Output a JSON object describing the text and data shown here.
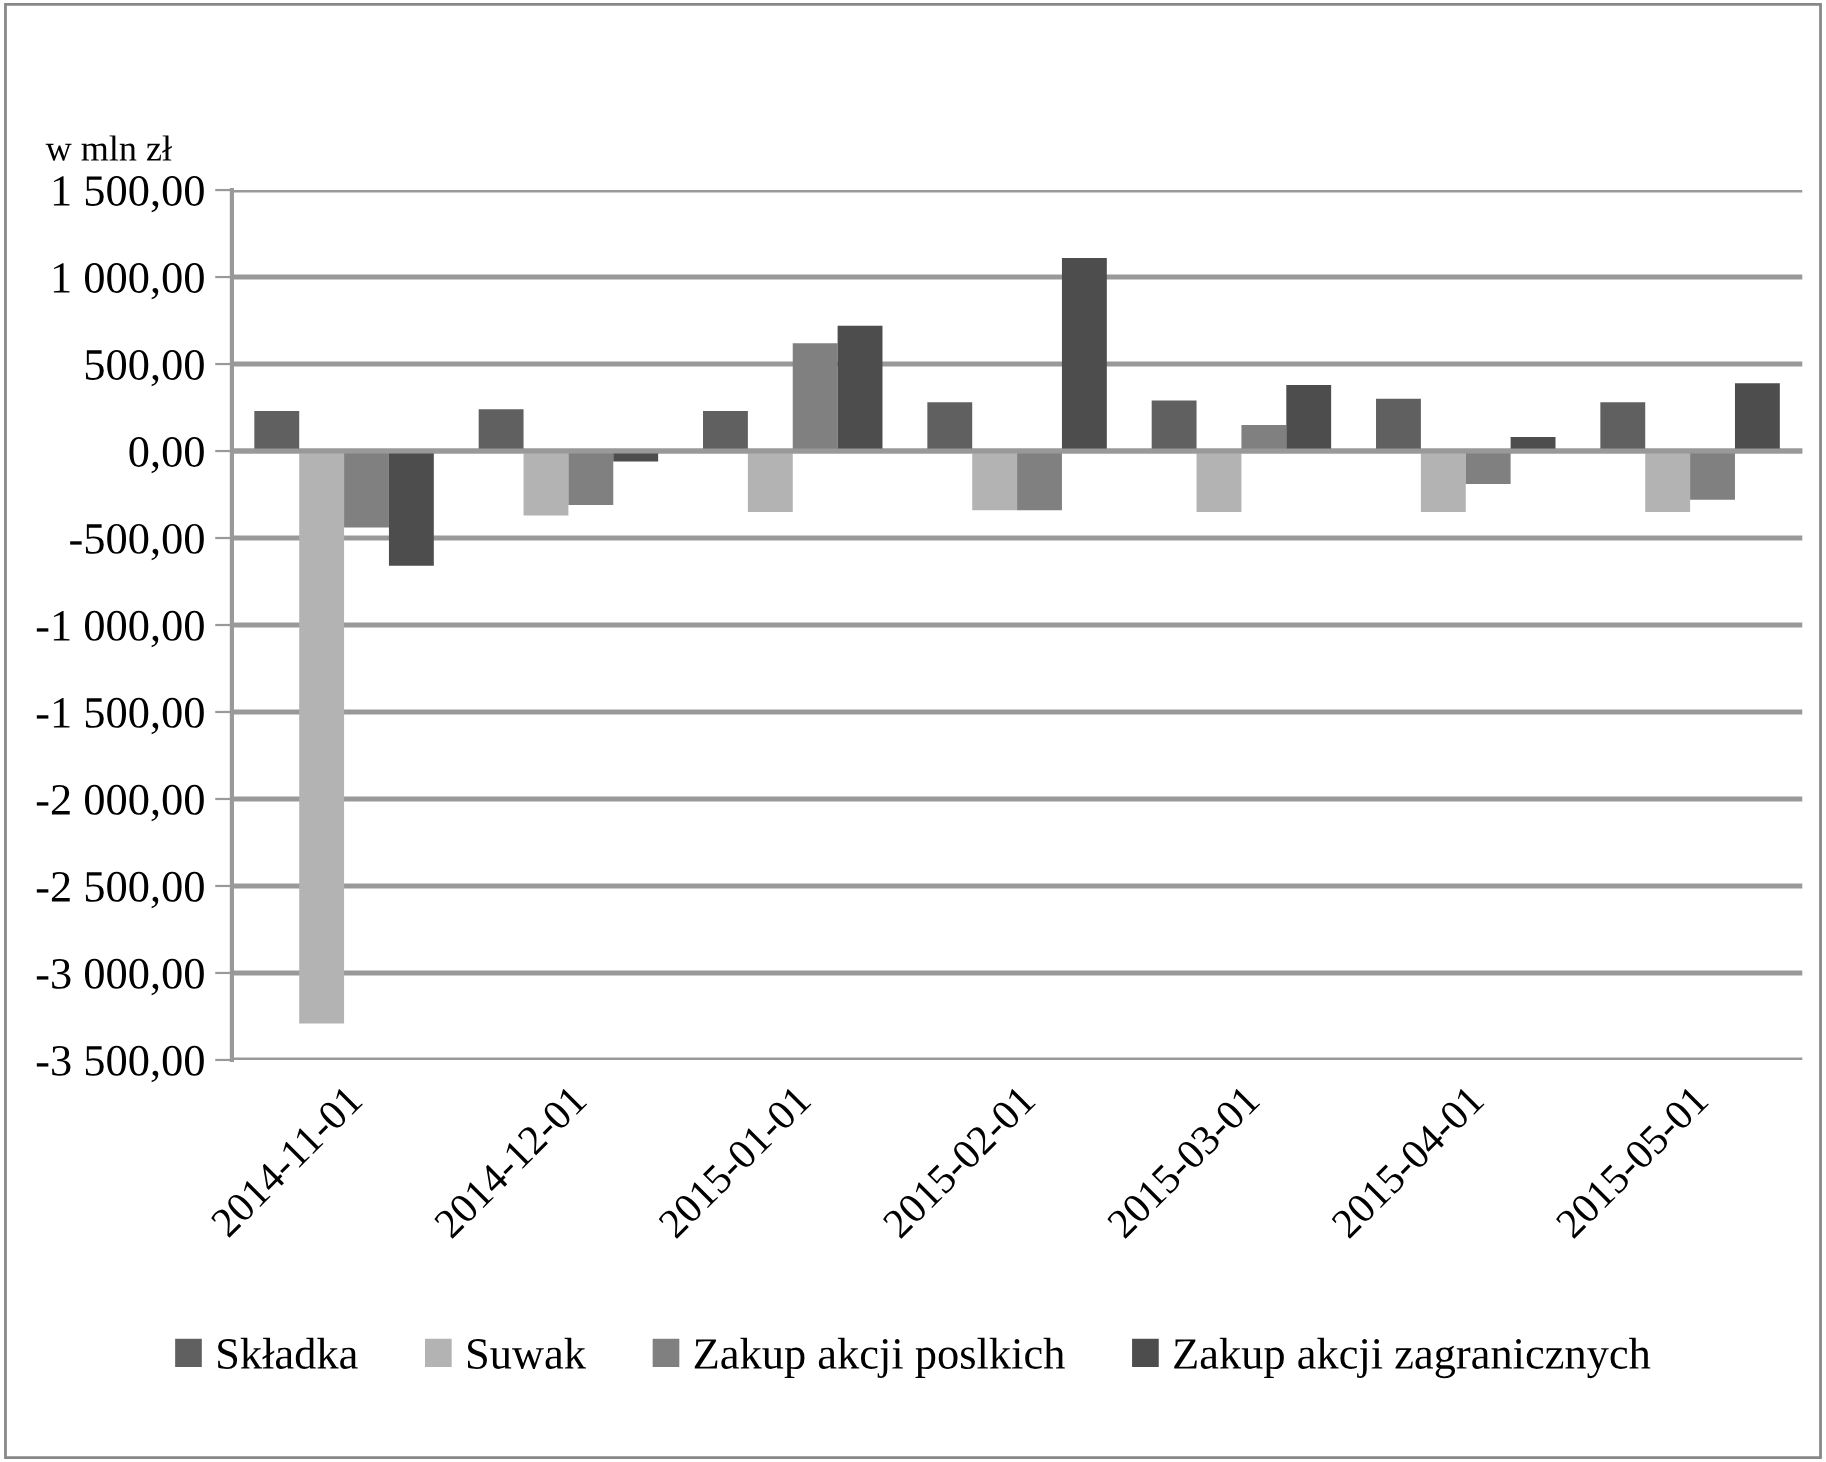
{
  "chart_data": {
    "type": "bar",
    "ylabel": "w mln zł",
    "categories": [
      "2014-11-01",
      "2014-12-01",
      "2015-01-01",
      "2015-02-01",
      "2015-03-01",
      "2015-04-01",
      "2015-05-01"
    ],
    "series": [
      {
        "name": "Składka",
        "color": "#606060",
        "values": [
          230,
          240,
          230,
          280,
          290,
          300,
          280
        ]
      },
      {
        "name": "Suwak",
        "color": "#b3b3b3",
        "values": [
          -3290,
          -370,
          -350,
          -340,
          -350,
          -350,
          -350
        ]
      },
      {
        "name": "Zakup akcji poslkich",
        "color": "#808080",
        "values": [
          -440,
          -310,
          620,
          -340,
          150,
          -190,
          -280
        ]
      },
      {
        "name": "Zakup akcji zagranicznych",
        "color": "#4d4d4d",
        "values": [
          -660,
          -60,
          720,
          1110,
          380,
          80,
          390
        ]
      }
    ],
    "ylim": [
      -3500,
      1500
    ],
    "yticks": [
      {
        "value": -3500,
        "label": "-3 500,00"
      },
      {
        "value": -3000,
        "label": "-3 000,00"
      },
      {
        "value": -2500,
        "label": "-2 500,00"
      },
      {
        "value": -2000,
        "label": "-2 000,00"
      },
      {
        "value": -1500,
        "label": "-1 500,00"
      },
      {
        "value": -1000,
        "label": "-1 000,00"
      },
      {
        "value": -500,
        "label": "-500,00"
      },
      {
        "value": 0,
        "label": "0,00"
      },
      {
        "value": 500,
        "label": "500,00"
      },
      {
        "value": 1000,
        "label": "1 000,00"
      },
      {
        "value": 1500,
        "label": "1 500,00"
      }
    ],
    "grid": "y",
    "legend": "bottom"
  }
}
